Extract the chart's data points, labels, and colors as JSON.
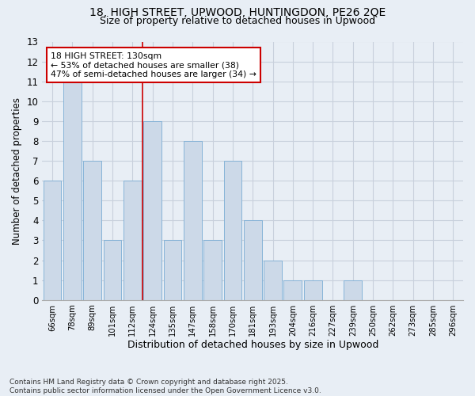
{
  "title_line1": "18, HIGH STREET, UPWOOD, HUNTINGDON, PE26 2QE",
  "title_line2": "Size of property relative to detached houses in Upwood",
  "xlabel": "Distribution of detached houses by size in Upwood",
  "ylabel": "Number of detached properties",
  "footnote": "Contains HM Land Registry data © Crown copyright and database right 2025.\nContains public sector information licensed under the Open Government Licence v3.0.",
  "bar_labels": [
    "66sqm",
    "78sqm",
    "89sqm",
    "101sqm",
    "112sqm",
    "124sqm",
    "135sqm",
    "147sqm",
    "158sqm",
    "170sqm",
    "181sqm",
    "193sqm",
    "204sqm",
    "216sqm",
    "227sqm",
    "239sqm",
    "250sqm",
    "262sqm",
    "273sqm",
    "285sqm",
    "296sqm"
  ],
  "bar_values": [
    6,
    11,
    7,
    3,
    6,
    9,
    3,
    8,
    3,
    7,
    4,
    2,
    1,
    1,
    0,
    1,
    0,
    0,
    0,
    0,
    0
  ],
  "bar_color": "#ccd9e8",
  "bar_edge_color": "#7aadd4",
  "grid_color": "#c8d0dc",
  "property_line_index": 5,
  "property_line_color": "#cc0000",
  "annotation_text": "18 HIGH STREET: 130sqm\n← 53% of detached houses are smaller (38)\n47% of semi-detached houses are larger (34) →",
  "annotation_box_color": "#ffffff",
  "annotation_box_edge_color": "#cc0000",
  "ylim": [
    0,
    13
  ],
  "yticks": [
    0,
    1,
    2,
    3,
    4,
    5,
    6,
    7,
    8,
    9,
    10,
    11,
    12,
    13
  ],
  "bg_color": "#e8eef5",
  "plot_bg_color": "#e8eef5",
  "title1_fontsize": 10,
  "title2_fontsize": 9,
  "footnote_fontsize": 6.5
}
